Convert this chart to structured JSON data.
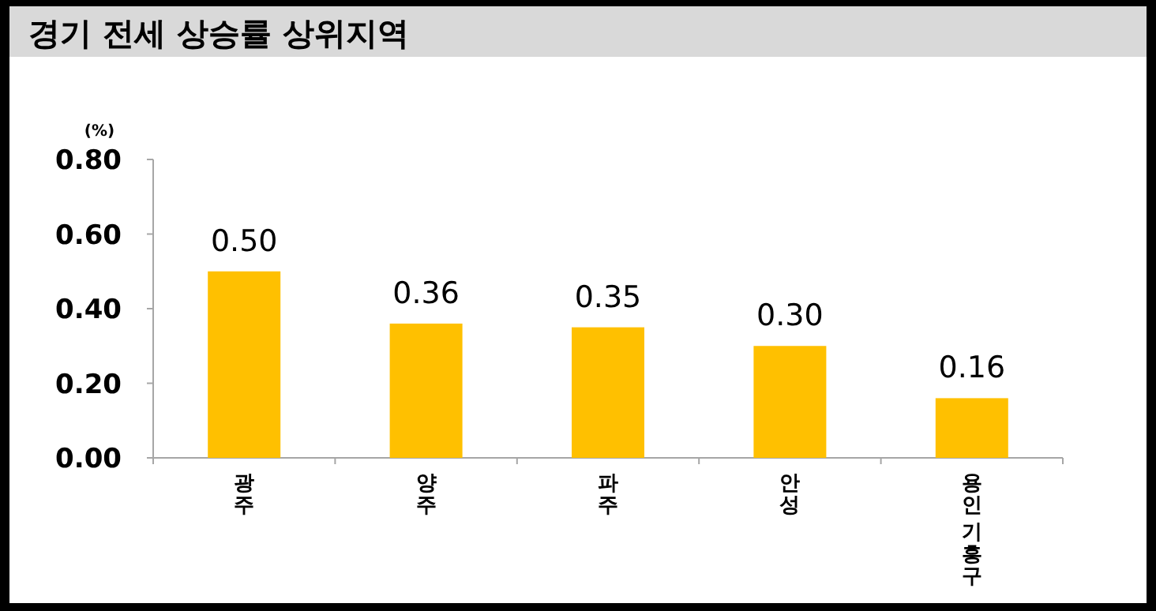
{
  "chart_data": {
    "type": "bar",
    "title": "경기 전세 상승률 상위지역",
    "ylabel": "(%)",
    "categories": [
      "광주",
      "양주",
      "파주",
      "안성",
      "용인 기흥구"
    ],
    "values": [
      0.5,
      0.36,
      0.35,
      0.3,
      0.16
    ],
    "value_labels": [
      "0.50",
      "0.36",
      "0.35",
      "0.30",
      "0.16"
    ],
    "color": "#ffc000",
    "ylim": [
      0,
      0.8
    ],
    "yticks": [
      {
        "value": 0,
        "label": "0.00"
      },
      {
        "value": 0.2,
        "label": "0.20"
      },
      {
        "value": 0.4,
        "label": "0.40"
      },
      {
        "value": 0.6,
        "label": "0.60"
      },
      {
        "value": 0.8,
        "label": "0.80"
      }
    ],
    "grid": false
  }
}
